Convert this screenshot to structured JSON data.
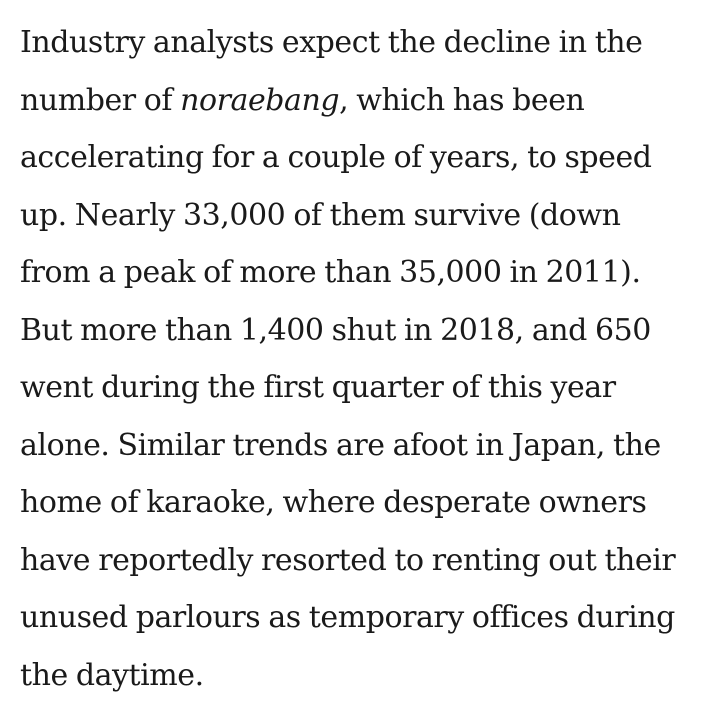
{
  "article": {
    "paragraph": {
      "l1": "Industry analysts expect the decline in the",
      "l2_a": "number of ",
      "l2_em": "noraebang",
      "l2_b": ", which has been",
      "l3": "accelerating for a couple of years, to speed",
      "l4": "up. Nearly 33,000 of them survive (down",
      "l5": "from a peak of more than 35,000 in 2011).",
      "l6": "But more than 1,400 shut in 2018, and 650",
      "l7": "went during the first quarter of this year",
      "l8": "alone. Similar trends are afoot in Japan, the",
      "l9": "home of karaoke, where desperate owners",
      "l10": "have reportedly resorted to renting out their",
      "l11": "unused parlours as temporary offices during",
      "l12": "the daytime."
    }
  }
}
